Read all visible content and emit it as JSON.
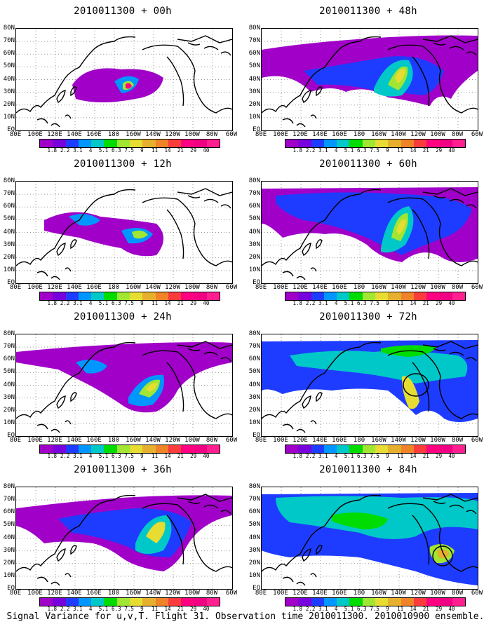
{
  "caption": "Signal Variance for u,v,T. Flight 31. Observation time 2010011300. 2010010900 ensemble.",
  "y_labels": [
    "80N",
    "70N",
    "60N",
    "50N",
    "40N",
    "30N",
    "20N",
    "10N",
    "EQ"
  ],
  "x_labels": [
    "80E",
    "100E",
    "120E",
    "140E",
    "160E",
    "180",
    "160W",
    "140W",
    "120W",
    "100W",
    "80W",
    "60W"
  ],
  "colorbar": {
    "levels": [
      "1.8",
      "2.2",
      "3.1",
      "4",
      "5.1",
      "6.3",
      "7.5",
      "9",
      "11",
      "14",
      "21",
      "29",
      "40"
    ],
    "colors": [
      "#a000c8",
      "#7800dc",
      "#1e3cff",
      "#0096ff",
      "#00c8c8",
      "#00dc00",
      "#a0e632",
      "#e6dc32",
      "#e6af2d",
      "#f08228",
      "#fa3c3c",
      "#ff0080",
      "#f00082"
    ]
  },
  "panels": [
    {
      "id": "p00",
      "title": "2010011300 + 00h"
    },
    {
      "id": "p48",
      "title": "2010011300 + 48h"
    },
    {
      "id": "p12",
      "title": "2010011300 + 12h"
    },
    {
      "id": "p60",
      "title": "2010011300 + 60h"
    },
    {
      "id": "p24",
      "title": "2010011300 + 24h"
    },
    {
      "id": "p72",
      "title": "2010011300 + 72h"
    },
    {
      "id": "p36",
      "title": "2010011300 + 36h"
    },
    {
      "id": "p84",
      "title": "2010011300 + 84h"
    }
  ]
}
